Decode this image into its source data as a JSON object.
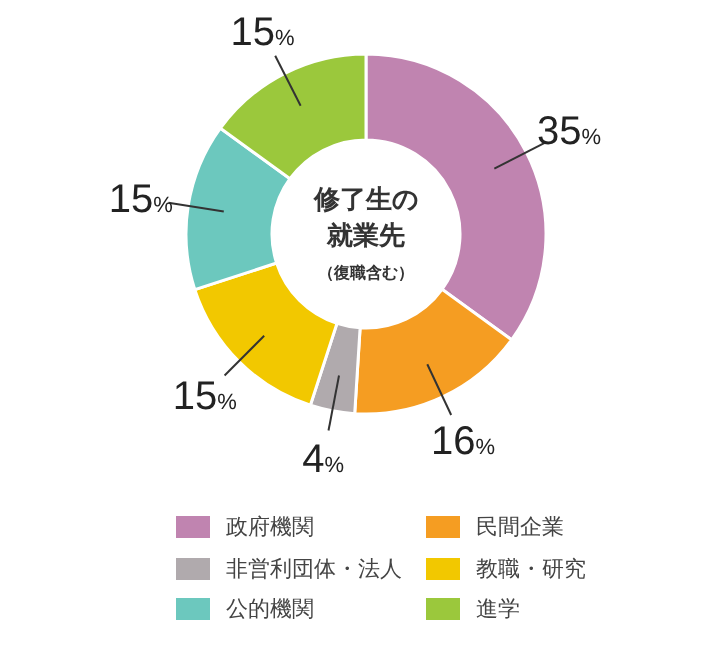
{
  "chart_data": {
    "type": "donut",
    "title": "修了生の就業先",
    "subtitle": "（復職含む）",
    "categories": [
      "政府機関",
      "民間企業",
      "非営利団体・法人",
      "教職・研究",
      "公的機関",
      "進学"
    ],
    "values": [
      35,
      16,
      4,
      15,
      15,
      15
    ],
    "colors": [
      "#c084b0",
      "#f59d22",
      "#b0aaad",
      "#f2c800",
      "#6cc8be",
      "#9bc83c"
    ],
    "value_labels": [
      "35%",
      "16%",
      "4%",
      "15%",
      "15%",
      "15%"
    ],
    "legend": "bottom"
  }
}
